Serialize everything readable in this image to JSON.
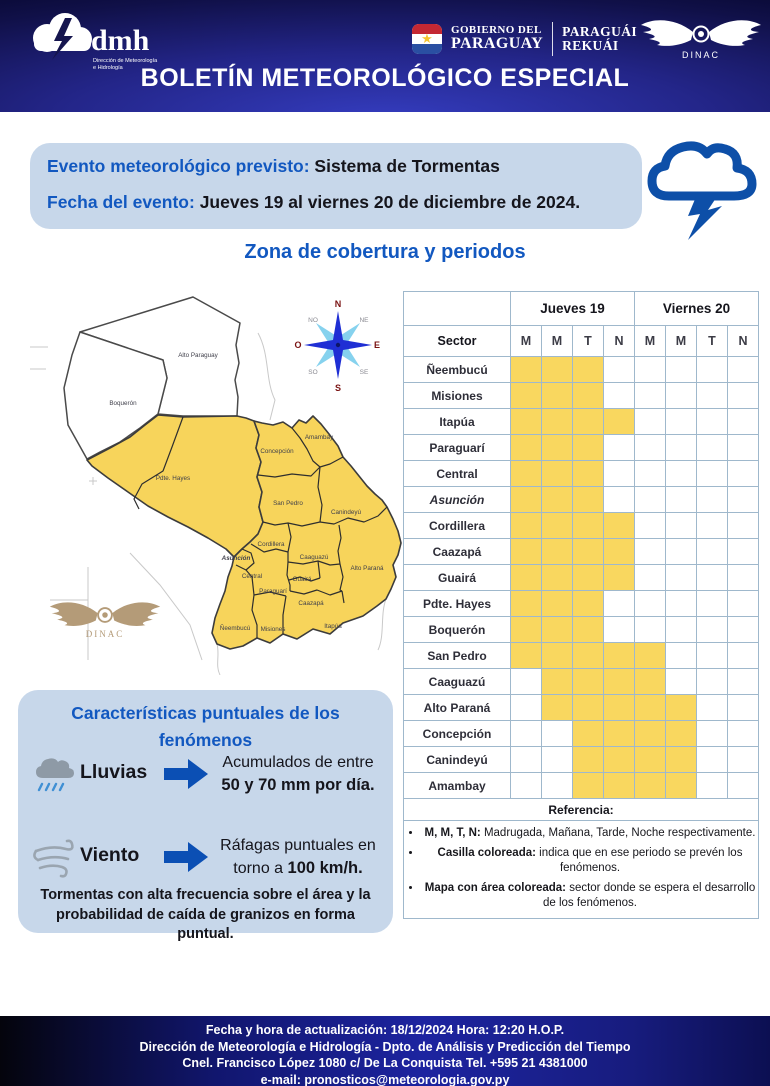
{
  "header": {
    "dmh": {
      "name": "dmh",
      "tagline1": "Dirección de Meteorología",
      "tagline2": "e Hidrología"
    },
    "gov": {
      "line1": "GOBIERNO DEL",
      "line2": "PARAGUAY",
      "line3": "PARAGUÁI",
      "line4": "REKUÁI"
    },
    "dinac": "DINAC",
    "title": "BOLETÍN METEOROLÓGICO ESPECIAL"
  },
  "event": {
    "label1": "Evento meteorológico previsto:",
    "value1": "Sistema de Tormentas",
    "label2": "Fecha del evento:",
    "value2": "Jueves 19 al viernes 20 de diciembre de 2024."
  },
  "section_title": "Zona de cobertura y periodos",
  "map": {
    "watermark": "DINAC",
    "compass": {
      "n": "N",
      "ne": "NE",
      "e": "E",
      "se": "SE",
      "s": "S",
      "so": "SO",
      "o": "O",
      "no": "NO"
    },
    "labels": {
      "alto_paraguay": "Alto Paraguay",
      "boqueron": "Boquerón",
      "pdte_hayes": "Pdte. Hayes",
      "concepcion": "Concepción",
      "amambay": "Amambay",
      "san_pedro": "San Pedro",
      "canindeyu": "Canindeyú",
      "cordillera": "Cordillera",
      "caaguazu": "Caaguazú",
      "alto_parana": "Alto Paraná",
      "asuncion": "Asunción",
      "central": "Central",
      "guaira": "Guairá",
      "paraguari": "Paraguarí",
      "caazapa": "Caazapá",
      "neembucu": "Ñeembucú",
      "misiones": "Misiones",
      "itapua": "Itapúa"
    }
  },
  "table": {
    "day1": "Jueves 19",
    "day2": "Viernes 20",
    "sector_header": "Sector",
    "periods": [
      "M",
      "M",
      "T",
      "N",
      "M",
      "M",
      "T",
      "N"
    ],
    "rows": [
      {
        "sector": "Ñeembucú",
        "italic": false,
        "cells": [
          1,
          1,
          1,
          0,
          0,
          0,
          0,
          0
        ]
      },
      {
        "sector": "Misiones",
        "italic": false,
        "cells": [
          1,
          1,
          1,
          0,
          0,
          0,
          0,
          0
        ]
      },
      {
        "sector": "Itapúa",
        "italic": false,
        "cells": [
          1,
          1,
          1,
          1,
          0,
          0,
          0,
          0
        ]
      },
      {
        "sector": "Paraguarí",
        "italic": false,
        "cells": [
          1,
          1,
          1,
          0,
          0,
          0,
          0,
          0
        ]
      },
      {
        "sector": "Central",
        "italic": false,
        "cells": [
          1,
          1,
          1,
          0,
          0,
          0,
          0,
          0
        ]
      },
      {
        "sector": "Asunción",
        "italic": true,
        "cells": [
          1,
          1,
          1,
          0,
          0,
          0,
          0,
          0
        ]
      },
      {
        "sector": "Cordillera",
        "italic": false,
        "cells": [
          1,
          1,
          1,
          1,
          0,
          0,
          0,
          0
        ]
      },
      {
        "sector": "Caazapá",
        "italic": false,
        "cells": [
          1,
          1,
          1,
          1,
          0,
          0,
          0,
          0
        ]
      },
      {
        "sector": "Guairá",
        "italic": false,
        "cells": [
          1,
          1,
          1,
          1,
          0,
          0,
          0,
          0
        ]
      },
      {
        "sector": "Pdte. Hayes",
        "italic": false,
        "cells": [
          1,
          1,
          1,
          0,
          0,
          0,
          0,
          0
        ]
      },
      {
        "sector": "Boquerón",
        "italic": false,
        "cells": [
          1,
          1,
          1,
          0,
          0,
          0,
          0,
          0
        ]
      },
      {
        "sector": "San Pedro",
        "italic": false,
        "cells": [
          1,
          1,
          1,
          1,
          1,
          0,
          0,
          0
        ]
      },
      {
        "sector": "Caaguazú",
        "italic": false,
        "cells": [
          0,
          1,
          1,
          1,
          1,
          0,
          0,
          0
        ]
      },
      {
        "sector": "Alto Paraná",
        "italic": false,
        "cells": [
          0,
          1,
          1,
          1,
          1,
          1,
          0,
          0
        ]
      },
      {
        "sector": "Concepción",
        "italic": false,
        "cells": [
          0,
          0,
          1,
          1,
          1,
          1,
          0,
          0
        ]
      },
      {
        "sector": "Canindeyú",
        "italic": false,
        "cells": [
          0,
          0,
          1,
          1,
          1,
          1,
          0,
          0
        ]
      },
      {
        "sector": "Amambay",
        "italic": false,
        "cells": [
          0,
          0,
          1,
          1,
          1,
          1,
          0,
          0
        ]
      }
    ],
    "reference_title": "Referencia:",
    "reference_items": [
      {
        "bold": "M, M, T, N:",
        "text": " Madrugada, Mañana, Tarde, Noche respectivamente."
      },
      {
        "bold": "Casilla coloreada:",
        "text": " indica que en ese periodo se prevén los fenómenos."
      },
      {
        "bold": "Mapa con área coloreada:",
        "text": " sector donde se espera el desarrollo de los fenómenos."
      }
    ]
  },
  "characteristics": {
    "title_line1": "Características puntuales de los",
    "title_line2": "fenómenos",
    "items": [
      {
        "label": "Lluvias",
        "line1": "Acumulados de entre",
        "line2_normal": "",
        "line2_bold": "50 y 70 mm por día."
      },
      {
        "label": "Viento",
        "line1": "Ráfagas puntuales en",
        "line2_normal": "torno a ",
        "line2_bold": "100 km/h."
      }
    ],
    "note": "Tormentas con alta frecuencia sobre el área y la probabilidad de caída de granizos en forma puntual."
  },
  "footer": {
    "line1": "Fecha y hora de actualización: 18/12/2024 Hora: 12:20 H.O.P.",
    "line2": "Dirección de Meteorología e Hidrología - Dpto. de Análisis y Predicción del Tiempo",
    "line3": "Cnel. Francisco López 1080 c/ De La Conquista Tel. +595 21 4381000",
    "line4": "e-mail: pronosticos@meteorologia.gov.py"
  },
  "colors": {
    "accent_blue": "#1258c0",
    "highlight_yellow": "#F9D75F",
    "icon_blue": "#0d4fa8",
    "box_blue": "#c7d7ea"
  }
}
